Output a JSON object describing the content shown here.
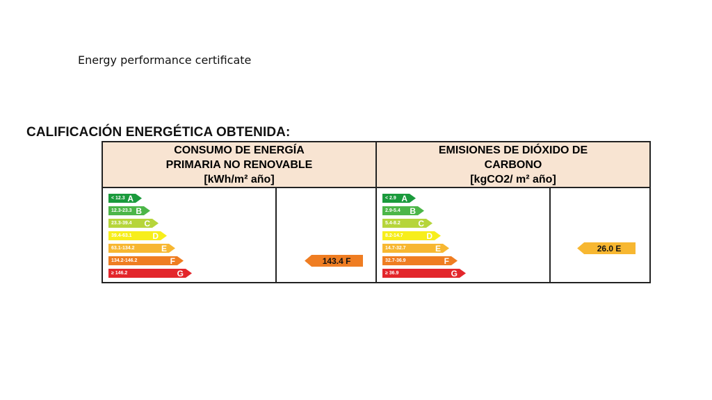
{
  "slide": {
    "subtitle": "Energy performance certificate"
  },
  "certificate": {
    "heading": "CALIFICACIÓN ENERGÉTICA OBTENIDA:",
    "colors": {
      "A": "#1a9a3c",
      "B": "#4cb648",
      "C": "#b6d53b",
      "D": "#f7ee1c",
      "E": "#f7b731",
      "F": "#ef7d22",
      "G": "#e3262b",
      "header_bg": "#f8e4d2"
    },
    "energy": {
      "header_line1": "CONSUMO DE ENERGÍA",
      "header_line2": "PRIMARIA NO RENOVABLE",
      "header_line3": "[kWh/m² año]",
      "scale": [
        {
          "letter": "A",
          "range": "< 12.3"
        },
        {
          "letter": "B",
          "range": "12.3-23.3"
        },
        {
          "letter": "C",
          "range": "23.3-39.4"
        },
        {
          "letter": "D",
          "range": "39.4-63.1"
        },
        {
          "letter": "E",
          "range": "63.1-134.2"
        },
        {
          "letter": "F",
          "range": "134.2-146.2"
        },
        {
          "letter": "G",
          "range": "≥ 146.2"
        }
      ],
      "rating_value": 143.4,
      "rating_letter": "F",
      "rating_label": "143.4 F"
    },
    "emissions": {
      "header_line1": "EMISIONES DE DIÓXIDO DE",
      "header_line2": "CARBONO",
      "header_line3": "[kgCO2/ m² año]",
      "scale": [
        {
          "letter": "A",
          "range": "< 2.9"
        },
        {
          "letter": "B",
          "range": "2.9-5.4"
        },
        {
          "letter": "C",
          "range": "5.4-8.2"
        },
        {
          "letter": "D",
          "range": "8.2-14.7"
        },
        {
          "letter": "E",
          "range": "14.7-32.7"
        },
        {
          "letter": "F",
          "range": "32.7-36.9"
        },
        {
          "letter": "G",
          "range": "≥ 36.9"
        }
      ],
      "rating_value": 26.0,
      "rating_letter": "E",
      "rating_label": "26.0 E"
    }
  }
}
